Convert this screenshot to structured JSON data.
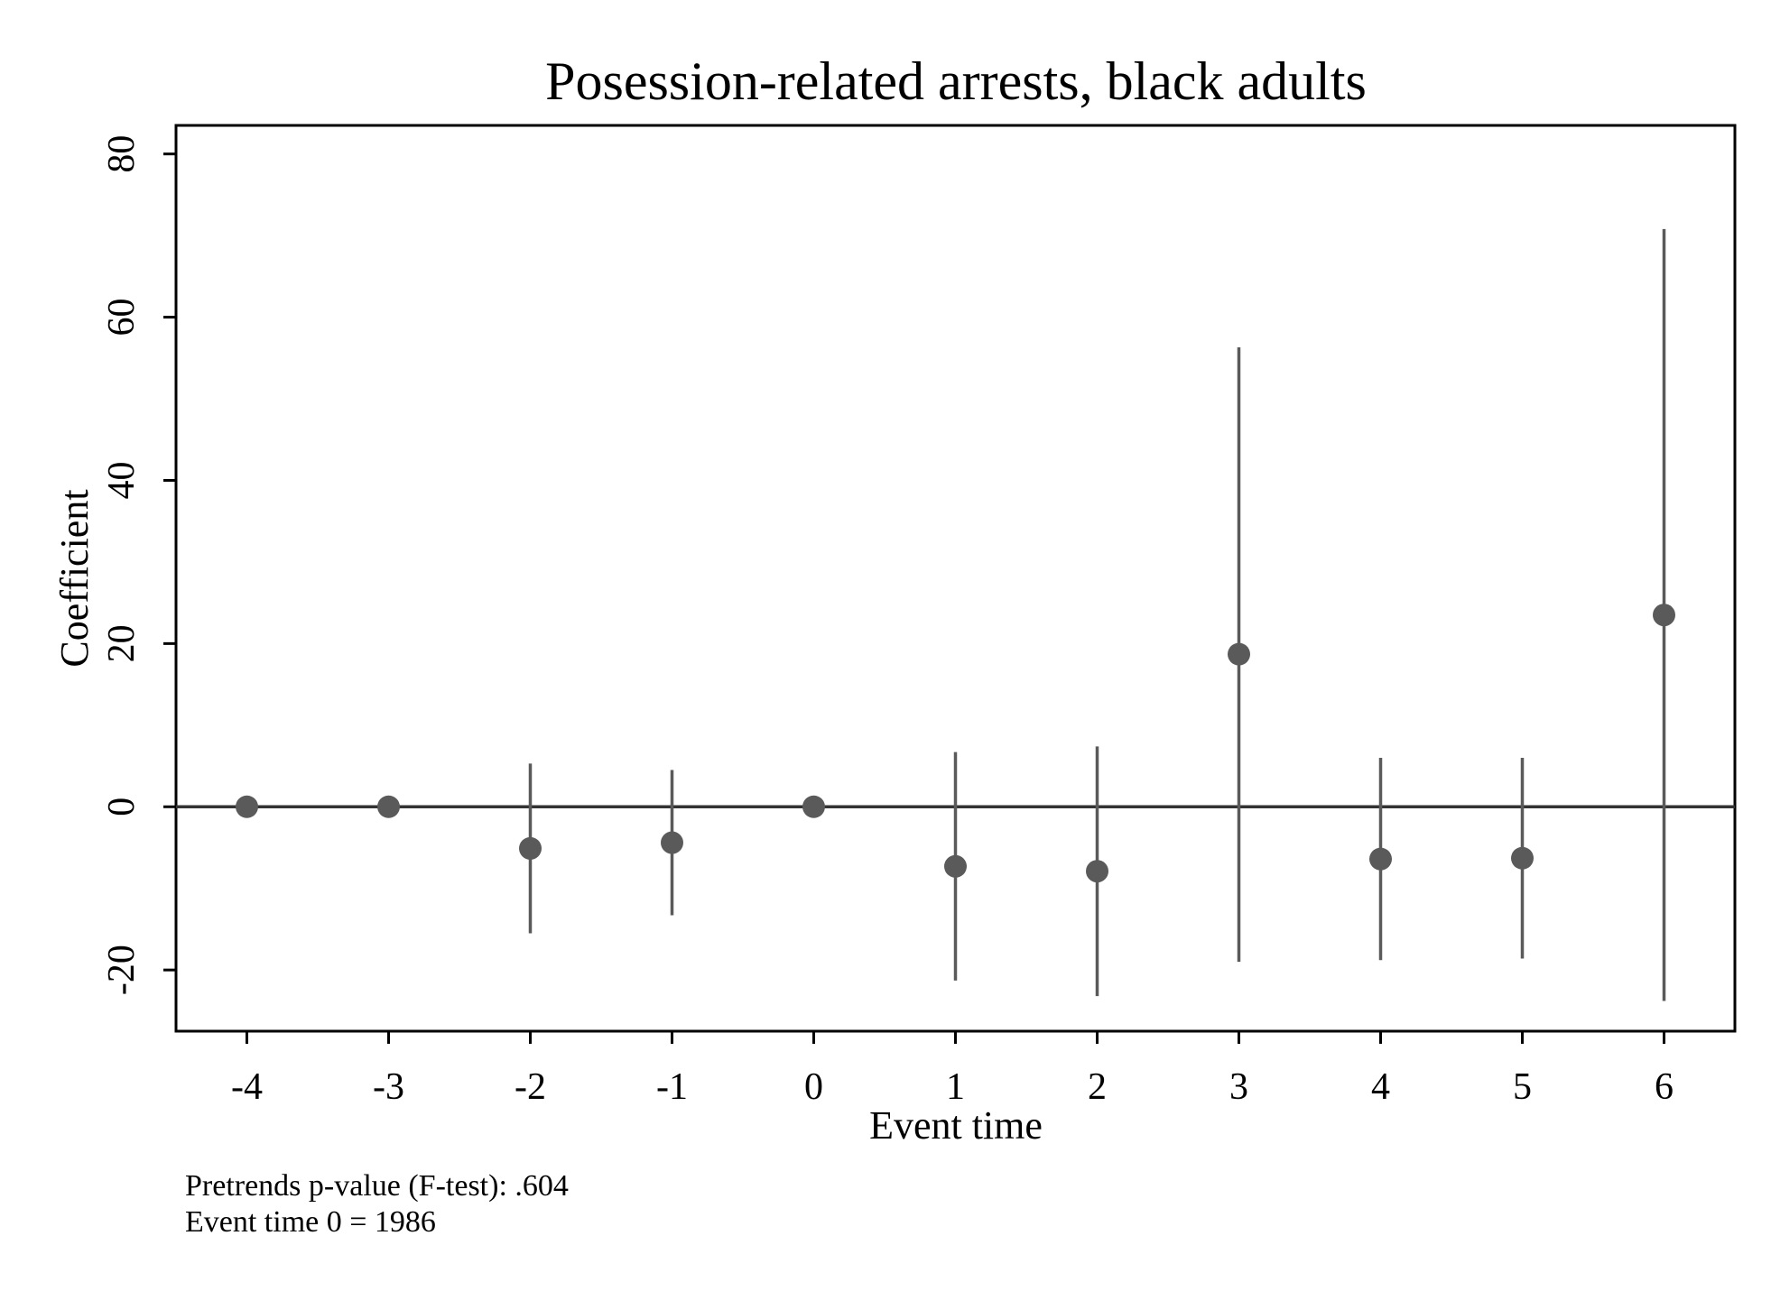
{
  "chart_data": {
    "type": "scatter",
    "title": "Posession-related arrests, black adults",
    "xlabel": "Event time",
    "ylabel": "Coefficient",
    "x_ticks": [
      "-4",
      "-3",
      "-2",
      "-1",
      "0",
      "1",
      "2",
      "3",
      "4",
      "5",
      "6"
    ],
    "y_ticks": [
      "-20",
      "0",
      "20",
      "40",
      "60",
      "80"
    ],
    "xlim": [
      -4.5,
      6.5
    ],
    "ylim": [
      -27.5,
      83.5
    ],
    "reference_line_y": 0,
    "grid": false,
    "points": [
      {
        "x": -4,
        "y": 0,
        "lo": 0,
        "hi": 0
      },
      {
        "x": -3,
        "y": 0,
        "lo": 0,
        "hi": 0
      },
      {
        "x": -2,
        "y": -5.1,
        "lo": -15.5,
        "hi": 5.3
      },
      {
        "x": -1,
        "y": -4.4,
        "lo": -13.3,
        "hi": 4.5
      },
      {
        "x": 0,
        "y": 0,
        "lo": 0,
        "hi": 0
      },
      {
        "x": 1,
        "y": -7.3,
        "lo": -21.3,
        "hi": 6.7
      },
      {
        "x": 2,
        "y": -7.9,
        "lo": -23.2,
        "hi": 7.4
      },
      {
        "x": 3,
        "y": 18.7,
        "lo": -19.0,
        "hi": 56.3
      },
      {
        "x": 4,
        "y": -6.4,
        "lo": -18.8,
        "hi": 6.0
      },
      {
        "x": 5,
        "y": -6.3,
        "lo": -18.6,
        "hi": 6.0
      },
      {
        "x": 6,
        "y": 23.5,
        "lo": -23.8,
        "hi": 70.8
      }
    ],
    "colors": {
      "marker": "#5a5a5a",
      "ci": "#5a5a5a",
      "axis": "#000000",
      "zero_line": "#333333"
    }
  },
  "notes": {
    "line1": "Pretrends p-value (F-test): .604",
    "line2": "Event time 0 = 1986"
  }
}
